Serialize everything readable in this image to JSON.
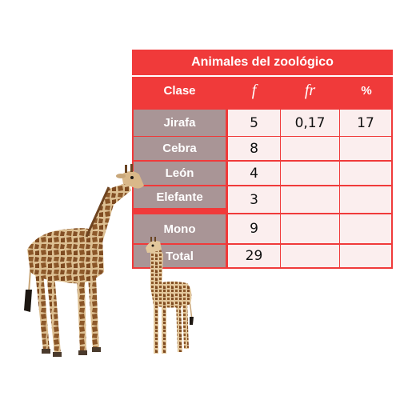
{
  "table": {
    "title": "Animales del zoológico",
    "headers": {
      "clase": "Clase",
      "f": "f",
      "fr": "fr",
      "pct": "%"
    },
    "rows": [
      {
        "clase": "Jirafa",
        "f": "5",
        "fr": "0,17",
        "pct": "17"
      },
      {
        "clase": "Cebra",
        "f": "8",
        "fr": "",
        "pct": ""
      },
      {
        "clase": "León",
        "f": "4",
        "fr": "",
        "pct": ""
      },
      {
        "clase": "Elefante",
        "f": "3",
        "fr": "",
        "pct": ""
      },
      {
        "clase": "Mono",
        "f": "9",
        "fr": "",
        "pct": ""
      },
      {
        "clase": "Total",
        "f": "29",
        "fr": "",
        "pct": ""
      }
    ]
  },
  "colors": {
    "table_red": "#f03a3a",
    "label_bg": "#a99596",
    "cell_bg": "#fbeeee",
    "giraffe_base": "#d9b889",
    "giraffe_spots": "#8a5527"
  },
  "images": {
    "adult_giraffe": "giraffe-photo",
    "young_giraffe": "giraffe-photo"
  }
}
